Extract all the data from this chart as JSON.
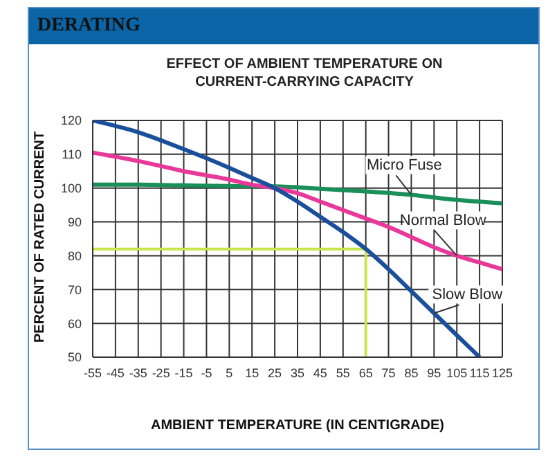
{
  "chart_data": {
    "type": "line",
    "title": "DERATING",
    "subtitle": "EFFECT OF AMBIENT TEMPERATURE ON CURRENT-CARRYING CAPACITY",
    "xlabel": "AMBIENT TEMPERATURE (IN CENTIGRADE)",
    "ylabel": "PERCENT OF RATED CURRENT",
    "series": [
      {
        "name": "Micro Fuse",
        "color": "#1a8f5a",
        "x": [
          -55,
          -35,
          -15,
          5,
          25,
          45,
          65,
          85,
          105,
          125
        ],
        "values": [
          101,
          101,
          100.8,
          100.6,
          100.5,
          99.8,
          99,
          98,
          96.5,
          95.5
        ]
      },
      {
        "name": "Normal Blow",
        "color": "#e8399a",
        "x": [
          -55,
          -35,
          -15,
          5,
          15,
          25,
          35,
          45,
          55,
          65,
          75,
          85,
          95,
          105,
          115,
          125
        ],
        "values": [
          110.5,
          108,
          105,
          102.5,
          101,
          100,
          98.5,
          96,
          93.5,
          91,
          88.5,
          85.5,
          82.5,
          80,
          78,
          76
        ]
      },
      {
        "name": "Slow Blow",
        "color": "#1a4f9c",
        "x": [
          -55,
          -35,
          -15,
          5,
          15,
          25,
          35,
          45,
          55,
          65,
          75,
          85,
          95,
          105,
          115
        ],
        "values": [
          120,
          116.5,
          111.5,
          106,
          103,
          100,
          96,
          91.5,
          87,
          82,
          76,
          69.5,
          63,
          56.5,
          50
        ]
      }
    ],
    "xlim": [
      -55,
      125
    ],
    "xticks": [
      -55,
      -45,
      -35,
      -25,
      -15,
      -5,
      5,
      15,
      25,
      35,
      45,
      55,
      65,
      75,
      85,
      95,
      105,
      115,
      125
    ],
    "ylim": [
      50,
      120
    ],
    "yticks": [
      50,
      60,
      70,
      80,
      90,
      100,
      110,
      120
    ],
    "grid": true,
    "legend": false,
    "marker": "none",
    "line_style": "solid",
    "ref_lines": [
      {
        "axis": "y",
        "value": 82,
        "color": "#c6e64a"
      },
      {
        "axis": "x",
        "value": 65,
        "color": "#c6e64a"
      }
    ]
  }
}
